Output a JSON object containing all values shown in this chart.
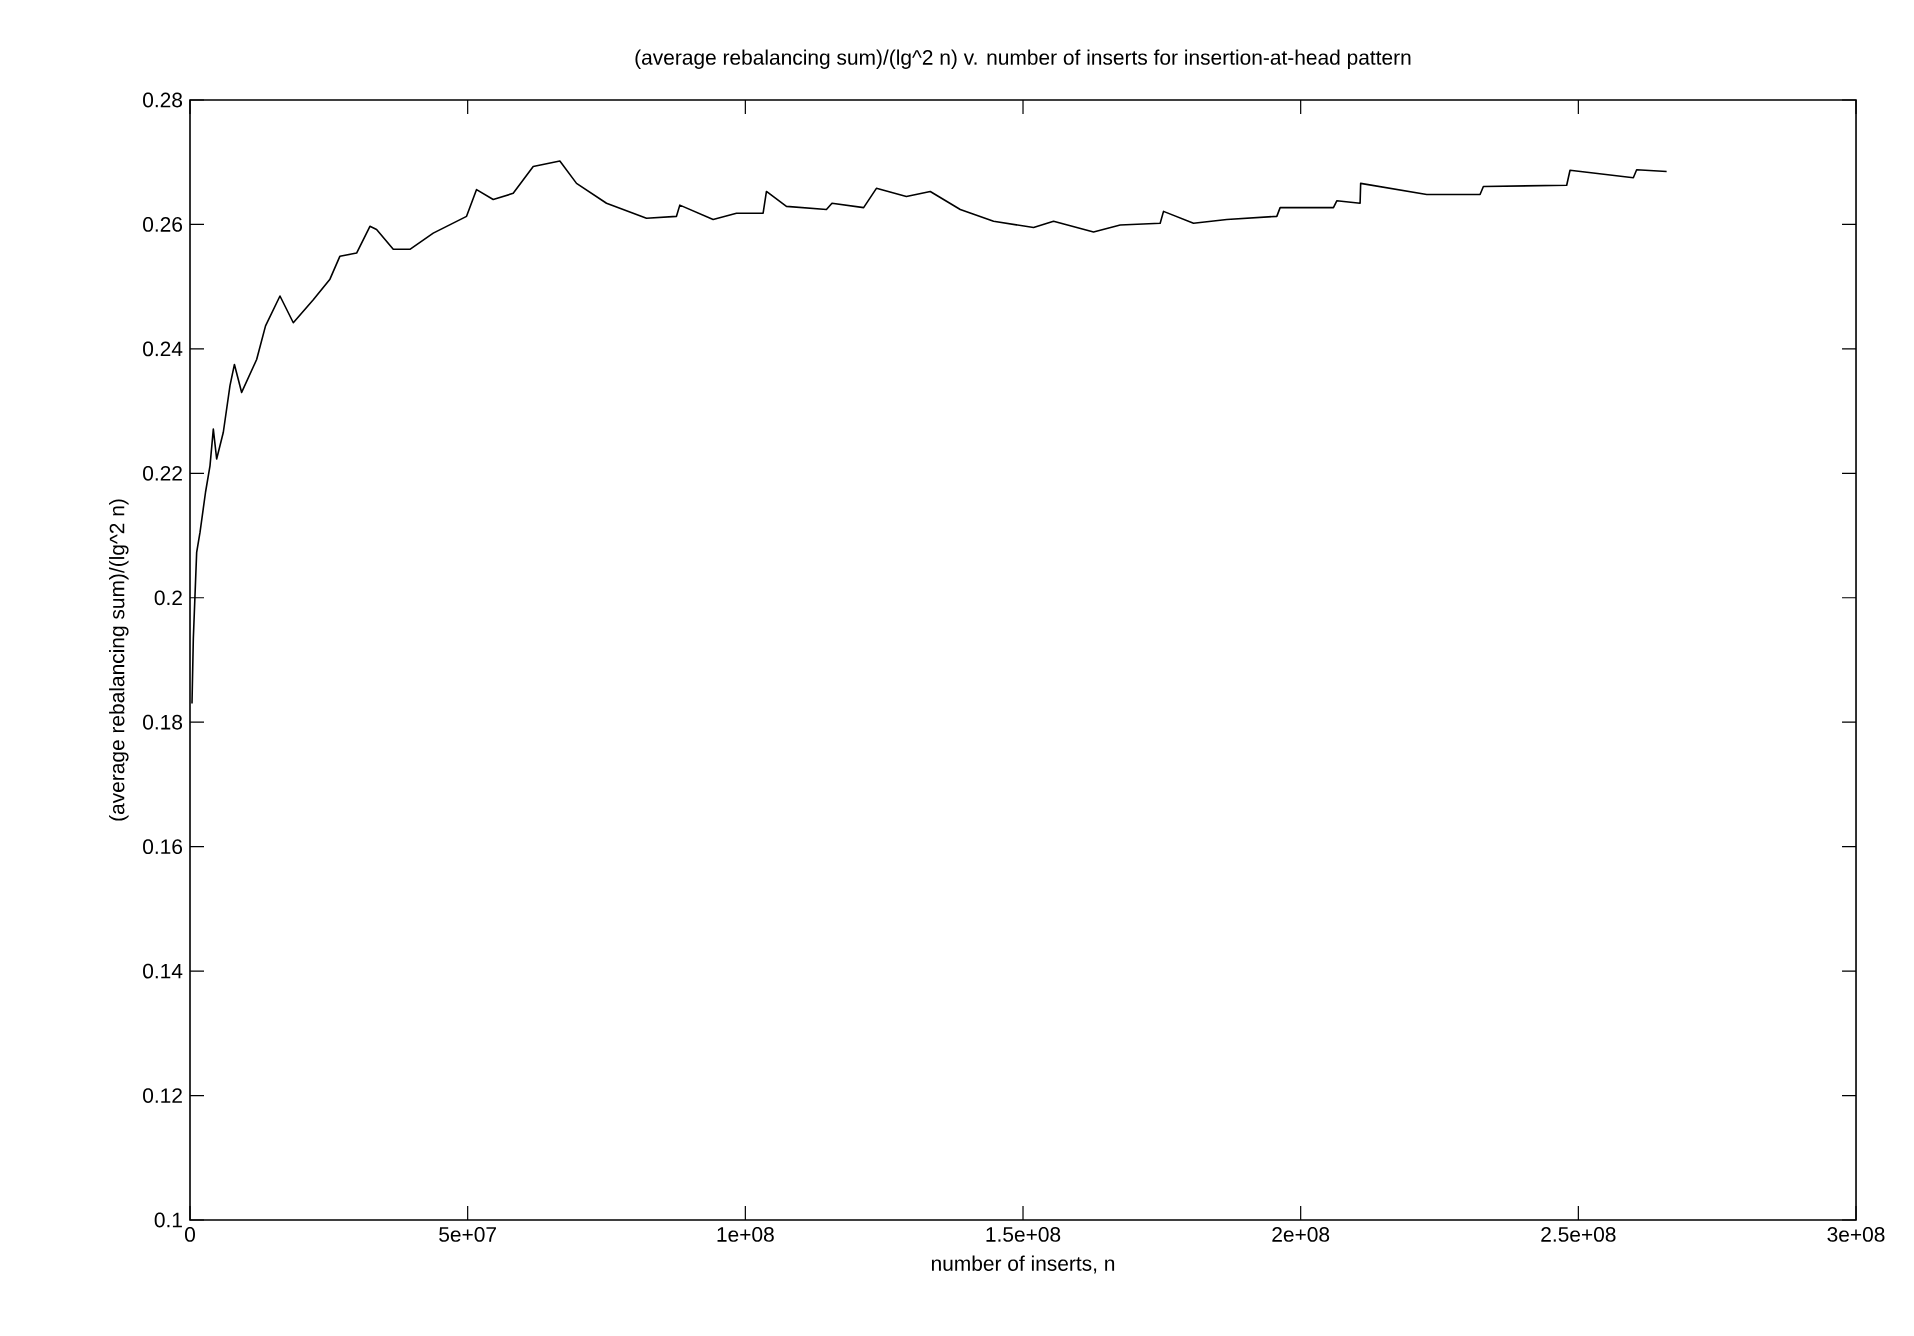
{
  "chart_data": {
    "type": "line",
    "title": "(average rebalancing sum)/(lg^2 n) v. number of inserts for insertion-at-head pattern",
    "xlabel": "number of inserts, n",
    "ylabel": "(average rebalancing sum)/(lg^2 n)",
    "xlim": [
      0,
      300000000
    ],
    "ylim": [
      0.1,
      0.28
    ],
    "xticks": [
      0,
      {
        "value": 50000000,
        "label": "5e+07"
      },
      {
        "value": 100000000,
        "label": "1e+08"
      },
      {
        "value": 150000000,
        "label": "1.5e+08"
      },
      {
        "value": 200000000,
        "label": "2e+08"
      },
      {
        "value": 250000000,
        "label": "2.5e+08"
      },
      {
        "value": 300000000,
        "label": "3e+08"
      }
    ],
    "yticks": [
      0.1,
      0.12,
      0.14,
      0.16,
      0.18,
      0.2,
      0.22,
      0.24,
      0.26,
      0.28
    ],
    "grid": false,
    "marker": "none",
    "line_style": "solid",
    "series": [
      {
        "color": "#000000",
        "x": [
          360000,
          600000,
          1200000,
          1800000,
          2800000,
          3600000,
          4200000,
          4800000,
          6000000,
          7200000,
          8000000,
          9300000,
          12000000,
          13600000,
          16200000,
          18600000,
          22200000,
          25200000,
          27000000,
          30000000,
          32400000,
          33600000,
          36600000,
          39600000,
          43800000,
          49800000,
          51600000,
          54600000,
          58200000,
          61800000,
          66600000,
          69600000,
          75000000,
          82200000,
          87600000,
          88200000,
          94200000,
          98400000,
          103200000,
          103800000,
          107400000,
          114600000,
          115600000,
          121300000,
          123600000,
          129000000,
          133300000,
          138700000,
          144700000,
          151900000,
          155500000,
          162700000,
          167500000,
          174700000,
          175300000,
          180700000,
          186700000,
          195700000,
          196300000,
          205900000,
          206500000,
          210700000,
          210800000,
          222700000,
          232300000,
          232900000,
          247900000,
          248500000,
          259900000,
          260500000,
          265900000
        ],
        "values": [
          0.183,
          0.1935,
          0.2073,
          0.2105,
          0.217,
          0.2212,
          0.2271,
          0.2223,
          0.2266,
          0.2341,
          0.2375,
          0.233,
          0.2383,
          0.2437,
          0.2485,
          0.2442,
          0.2479,
          0.2512,
          0.2549,
          0.2554,
          0.2597,
          0.2592,
          0.256,
          0.256,
          0.2586,
          0.2613,
          0.2656,
          0.264,
          0.265,
          0.2693,
          0.2702,
          0.2666,
          0.2634,
          0.261,
          0.2613,
          0.2631,
          0.2608,
          0.2618,
          0.2618,
          0.2653,
          0.2629,
          0.2624,
          0.2634,
          0.2627,
          0.2658,
          0.2645,
          0.2653,
          0.2624,
          0.2605,
          0.2595,
          0.2605,
          0.2588,
          0.2599,
          0.2602,
          0.2621,
          0.2602,
          0.2608,
          0.2613,
          0.2627,
          0.2627,
          0.2638,
          0.2634,
          0.2666,
          0.2648,
          0.2648,
          0.2661,
          0.2663,
          0.2687,
          0.2675,
          0.2688,
          0.2685
        ]
      }
    ]
  }
}
